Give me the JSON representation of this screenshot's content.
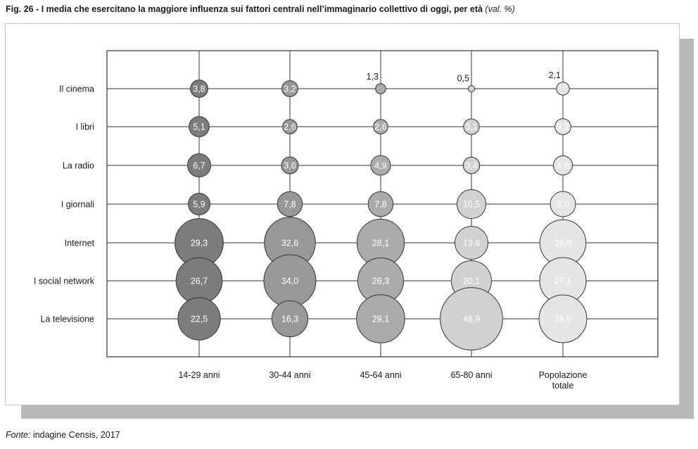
{
  "figure": {
    "title": "Fig. 26 - I media che esercitano la maggiore influenza sui fattori centrali nell’immaginario collettivo di oggi, per età",
    "unit": "(val. %)",
    "source_label": "Fonte:",
    "source_text": "indagine Censis, 2017"
  },
  "chart_data": {
    "type": "bubble",
    "title": "Fig. 26 - I media che esercitano la maggiore influenza sui fattori centrali nell’immaginario collettivo di oggi, per età",
    "unit": "val. %",
    "rows": [
      "Il cinema",
      "I libri",
      "La radio",
      "I giornali",
      "Internet",
      "I social network",
      "La televisione"
    ],
    "columns": [
      "14-29 anni",
      "30-44 anni",
      "45-64 anni",
      "65-80 anni",
      "Popolazione totale"
    ],
    "series": [
      {
        "name": "14-29 anni",
        "color": "#7c7c7c",
        "values": [
          3.8,
          5.1,
          6.7,
          5.9,
          29.3,
          26.7,
          22.5
        ]
      },
      {
        "name": "30-44 anni",
        "color": "#989898",
        "values": [
          3.2,
          2.6,
          3.6,
          7.8,
          32.6,
          34.0,
          16.3
        ]
      },
      {
        "name": "45-64 anni",
        "color": "#ababab",
        "values": [
          1.3,
          2.6,
          4.9,
          7.8,
          28.1,
          26.3,
          29.1
        ]
      },
      {
        "name": "65-80 anni",
        "color": "#d1d1d1",
        "values": [
          0.5,
          3.1,
          3.4,
          10.5,
          13.6,
          20.1,
          48.9
        ]
      },
      {
        "name": "Popolazione totale",
        "color": "#e5e5e5",
        "values": [
          2.1,
          3.2,
          4.6,
          8.0,
          26.6,
          27.1,
          28.5
        ]
      }
    ],
    "column_labels": [
      [
        "14-29 anni"
      ],
      [
        "30-44 anni"
      ],
      [
        "45-64 anni"
      ],
      [
        "65-80 anni"
      ],
      [
        "Popolazione",
        "totale"
      ]
    ],
    "display_labels": [
      [
        "3,8",
        "5,1",
        "6,7",
        "5,9",
        "29,3",
        "26,7",
        "22,5"
      ],
      [
        "3,2",
        "2,6",
        "3,6",
        "7,8",
        "32,6",
        "34,0",
        "16,3"
      ],
      [
        "1,3",
        "2,6",
        "4,9",
        "7,8",
        "28,1",
        "26,3",
        "29,1"
      ],
      [
        "0,5",
        "3,1",
        "3,4",
        "10,5",
        "13,6",
        "20,1",
        "48,9"
      ],
      [
        "2,1",
        "3,2",
        "4,6",
        "8,0",
        "26,6",
        "27,1",
        "28,5"
      ]
    ],
    "grid": true,
    "legend": "none"
  }
}
